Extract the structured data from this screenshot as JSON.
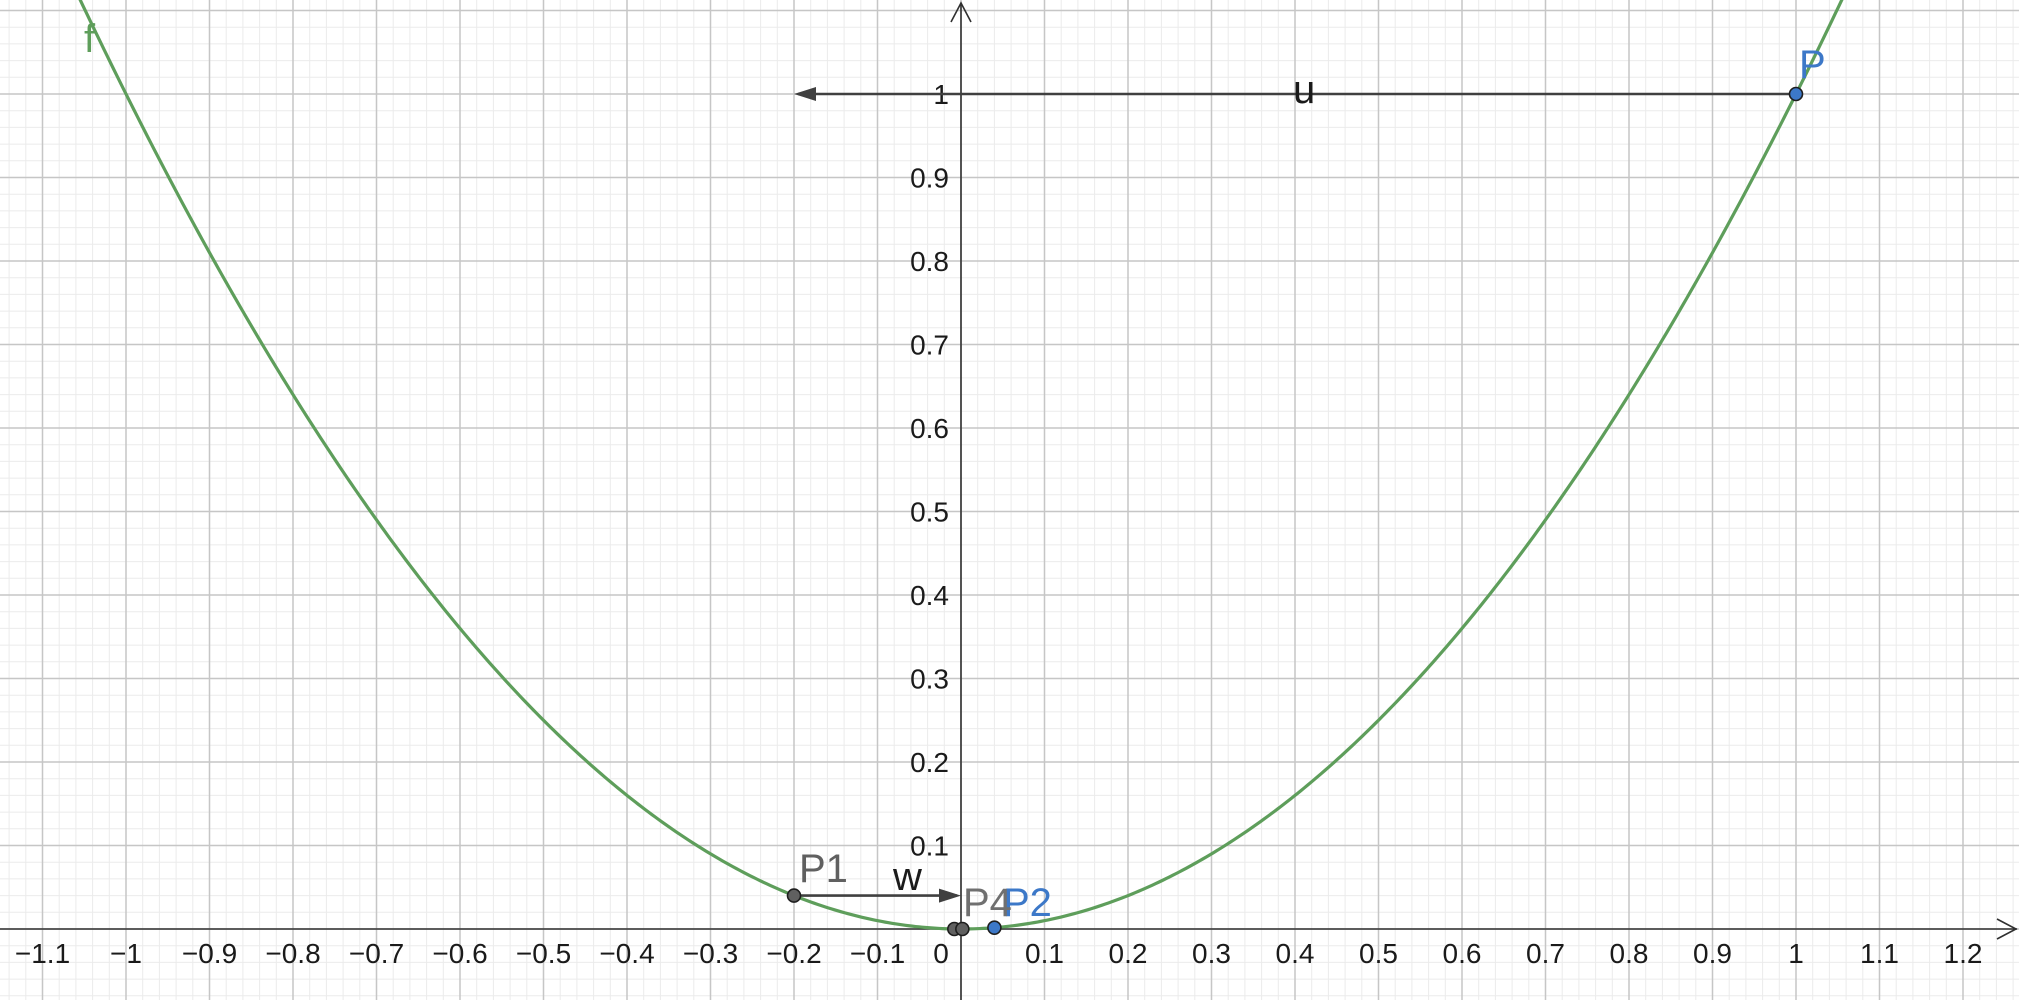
{
  "chart_data": {
    "type": "line",
    "title": "",
    "xlabel": "",
    "ylabel": "",
    "xlim": [
      -1.16,
      1.27
    ],
    "ylim": [
      -0.085,
      1.11
    ],
    "grid": true,
    "function": {
      "name": "f",
      "expression": "x^2",
      "color": "#5e9e5b"
    },
    "x_ticks": [
      {
        "value": -1.1,
        "label": "−1.1"
      },
      {
        "value": -1.0,
        "label": "−1"
      },
      {
        "value": -0.9,
        "label": "−0.9"
      },
      {
        "value": -0.8,
        "label": "−0.8"
      },
      {
        "value": -0.7,
        "label": "−0.7"
      },
      {
        "value": -0.6,
        "label": "−0.6"
      },
      {
        "value": -0.5,
        "label": "−0.5"
      },
      {
        "value": -0.4,
        "label": "−0.4"
      },
      {
        "value": -0.3,
        "label": "−0.3"
      },
      {
        "value": -0.2,
        "label": "−0.2"
      },
      {
        "value": -0.1,
        "label": "−0.1"
      },
      {
        "value": 0.0,
        "label": "0"
      },
      {
        "value": 0.1,
        "label": "0.1"
      },
      {
        "value": 0.2,
        "label": "0.2"
      },
      {
        "value": 0.3,
        "label": "0.3"
      },
      {
        "value": 0.4,
        "label": "0.4"
      },
      {
        "value": 0.5,
        "label": "0.5"
      },
      {
        "value": 0.6,
        "label": "0.6"
      },
      {
        "value": 0.7,
        "label": "0.7"
      },
      {
        "value": 0.8,
        "label": "0.8"
      },
      {
        "value": 0.9,
        "label": "0.9"
      },
      {
        "value": 1.0,
        "label": "1"
      },
      {
        "value": 1.1,
        "label": "1.1"
      },
      {
        "value": 1.2,
        "label": "1.2"
      }
    ],
    "y_ticks": [
      {
        "value": 0.1,
        "label": "0.1"
      },
      {
        "value": 0.2,
        "label": "0.2"
      },
      {
        "value": 0.3,
        "label": "0.3"
      },
      {
        "value": 0.4,
        "label": "0.4"
      },
      {
        "value": 0.5,
        "label": "0.5"
      },
      {
        "value": 0.6,
        "label": "0.6"
      },
      {
        "value": 0.7,
        "label": "0.7"
      },
      {
        "value": 0.8,
        "label": "0.8"
      },
      {
        "value": 0.9,
        "label": "0.9"
      },
      {
        "value": 1.0,
        "label": "1"
      }
    ],
    "points": [
      {
        "name": "P",
        "x": 1.0,
        "y": 1.0,
        "color": "#3c78c8"
      },
      {
        "name": "P1",
        "x": -0.2,
        "y": 0.04,
        "color": "#606060"
      },
      {
        "name": "P2",
        "x": 0.04,
        "y": 0.0016,
        "color": "#3c78c8"
      },
      {
        "name": "P3",
        "x": -0.008,
        "y": 0.0,
        "color": "#606060"
      },
      {
        "name": "P4",
        "x": 0.0016,
        "y": 0.0,
        "color": "#606060"
      }
    ],
    "vectors": [
      {
        "name": "u",
        "from": [
          1.0,
          1.0
        ],
        "to": [
          -0.2,
          1.0
        ],
        "color": "#404040"
      },
      {
        "name": "w",
        "from": [
          -0.2,
          0.04
        ],
        "to": [
          0.0,
          0.04
        ],
        "color": "#404040"
      }
    ],
    "point_labels": [
      {
        "text": "P",
        "color": "#3c78c8"
      },
      {
        "text": "P1",
        "color": "#606060"
      },
      {
        "text": "P2",
        "color": "#3c78c8"
      },
      {
        "text": "P4",
        "color": "#606060"
      }
    ],
    "vector_labels": [
      {
        "text": "u"
      },
      {
        "text": "w"
      }
    ]
  }
}
